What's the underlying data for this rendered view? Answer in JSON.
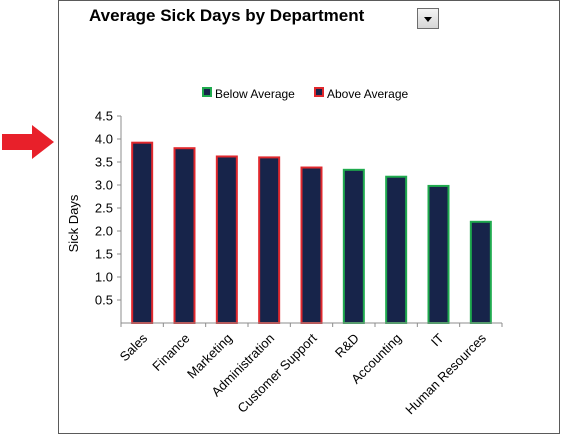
{
  "chart_data": {
    "type": "bar",
    "title": "Average Sick Days by Department",
    "xlabel": "",
    "ylabel": "Sick Days",
    "ylim": [
      0,
      4.5
    ],
    "yticks": [
      "0.5",
      "1.0",
      "1.5",
      "2.0",
      "2.5",
      "3.0",
      "3.5",
      "4.0",
      "4.5"
    ],
    "ytick_values": [
      0.5,
      1.0,
      1.5,
      2.0,
      2.5,
      3.0,
      3.5,
      4.0,
      4.5
    ],
    "categories": [
      "Sales",
      "Finance",
      "Marketing",
      "Administration",
      "Customer Support",
      "R&D",
      "Accounting",
      "IT",
      "Human Resources"
    ],
    "values": [
      3.92,
      3.8,
      3.62,
      3.6,
      3.38,
      3.33,
      3.18,
      2.98,
      2.2
    ],
    "bar_group": [
      "above",
      "above",
      "above",
      "above",
      "above",
      "below",
      "below",
      "below",
      "below"
    ],
    "legend": {
      "position": "top",
      "items": [
        {
          "key": "below",
          "label": "Below Average"
        },
        {
          "key": "above",
          "label": "Above Average"
        }
      ]
    },
    "grid": false
  },
  "colors": {
    "bar_fill": "#17244a",
    "above_border": "#e0282d",
    "below_border": "#1faa4e",
    "axis": "#8c8c8c",
    "arrow": "#e8202a",
    "frame": "#5a5a5a"
  },
  "icons": {
    "dropdown": "chevron-down-icon",
    "pointer": "arrow-right-icon"
  }
}
